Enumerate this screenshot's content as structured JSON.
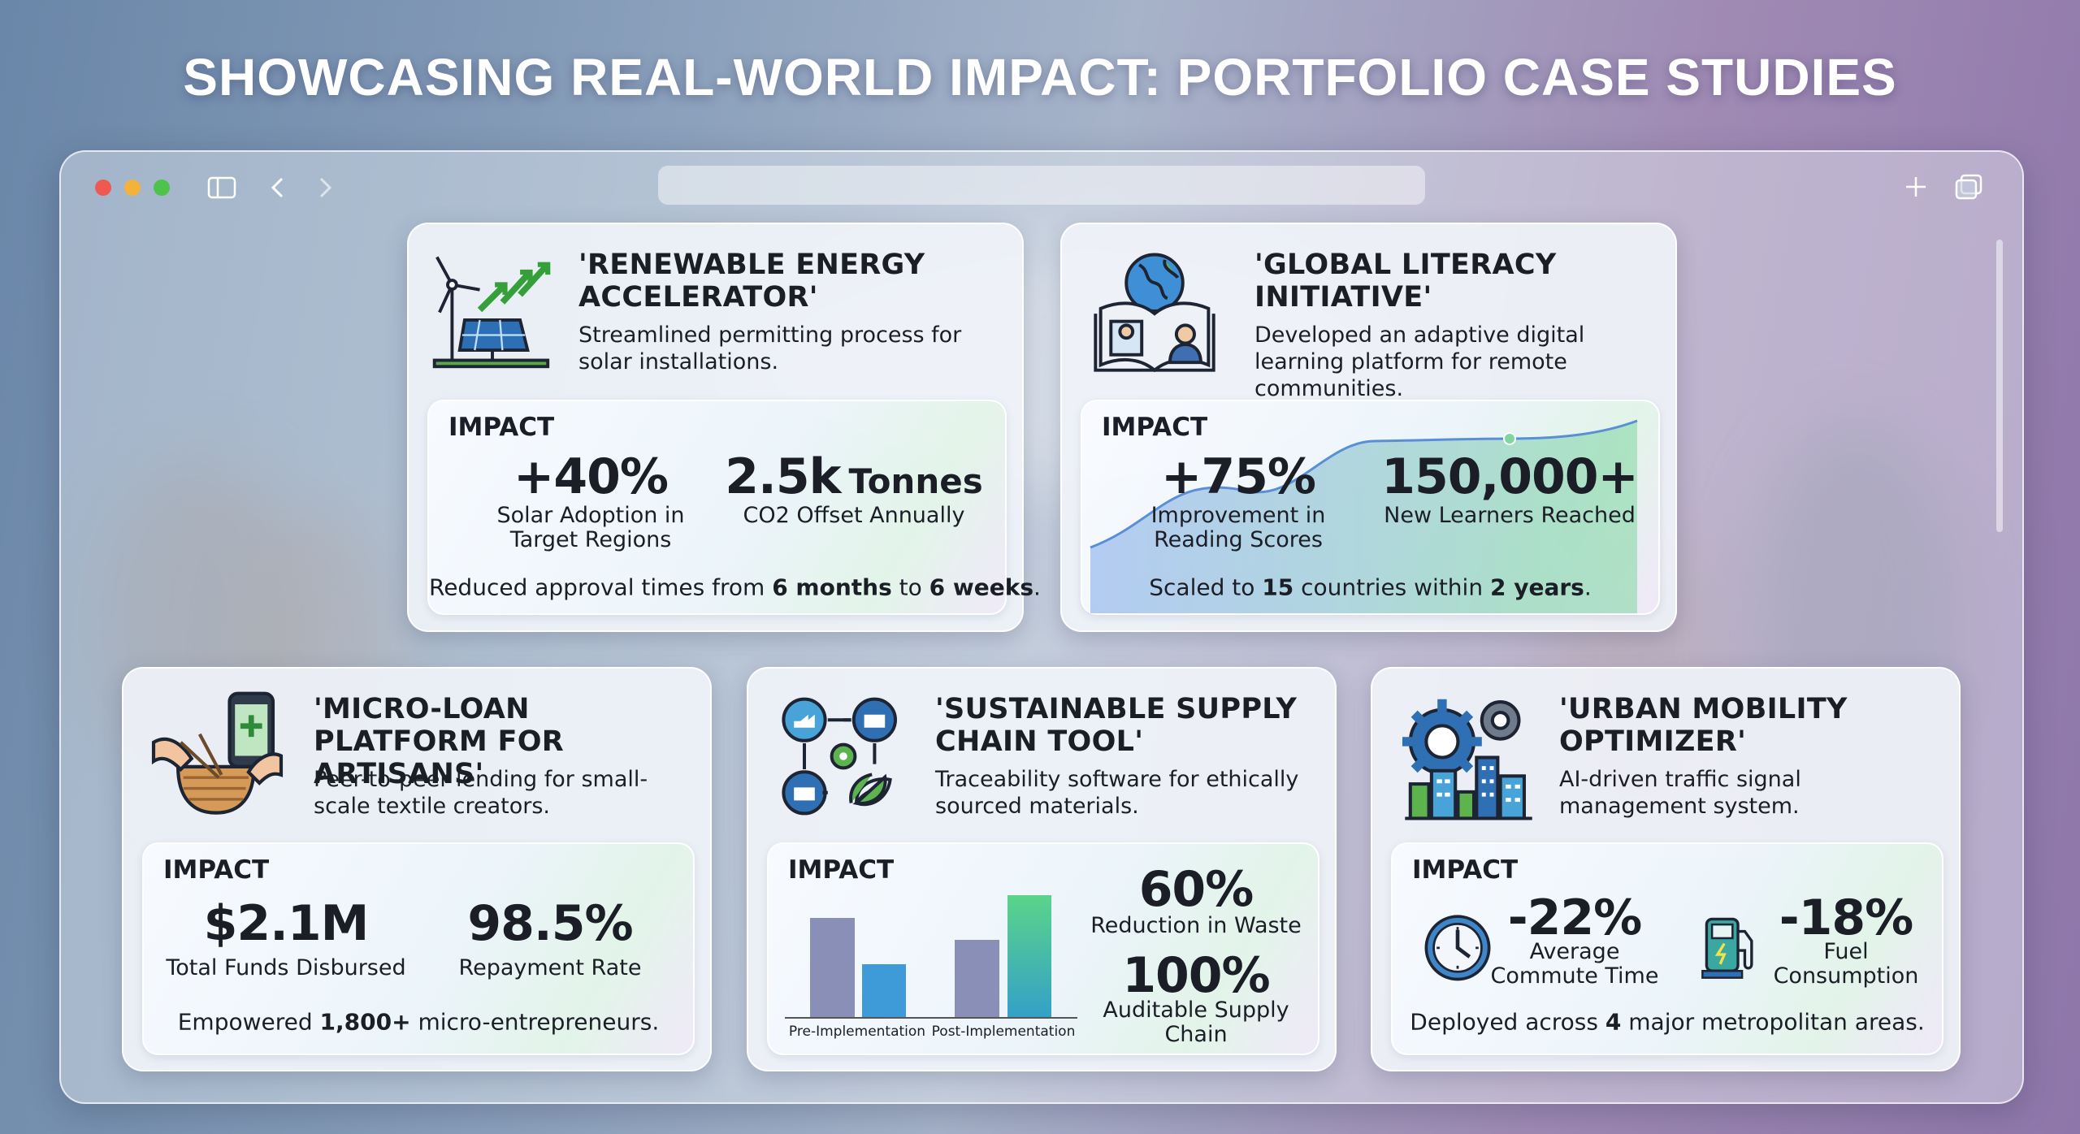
{
  "header": {
    "title": "SHOWCASING REAL-WORLD IMPACT: PORTFOLIO CASE STUDIES"
  },
  "cards": [
    {
      "title": "'RENEWABLE ENERGY ACCELERATOR'",
      "description": "Streamlined permitting process for solar installations.",
      "impact_label": "IMPACT",
      "metrics": [
        {
          "value": "+40%",
          "label": "Solar Adoption in Target Regions"
        },
        {
          "value": "2.5k",
          "unit": "Tonnes",
          "label": "CO2 Offset Annually"
        }
      ],
      "footer": [
        {
          "text": "Reduced approval times from ",
          "bold": false
        },
        {
          "text": "6 months",
          "bold": true
        },
        {
          "text": " to ",
          "bold": false
        },
        {
          "text": "6 weeks",
          "bold": true
        },
        {
          "text": ".",
          "bold": false
        }
      ]
    },
    {
      "title": "'GLOBAL LITERACY INITIATIVE'",
      "description": "Developed an adaptive digital learning platform for remote communities.",
      "impact_label": "IMPACT",
      "metrics": [
        {
          "value": "+75%",
          "label": "Improvement in Reading Scores"
        },
        {
          "value": "150,000+",
          "label": "New Learners Reached"
        }
      ],
      "footer": [
        {
          "text": "Scaled to ",
          "bold": false
        },
        {
          "text": "15",
          "bold": true
        },
        {
          "text": " countries within ",
          "bold": false
        },
        {
          "text": "2 years",
          "bold": true
        },
        {
          "text": ".",
          "bold": false
        }
      ]
    },
    {
      "title": "'MICRO-LOAN PLATFORM FOR ARTISANS'",
      "description": "Peer-to-peer lending for small-scale textile creators.",
      "impact_label": "IMPACT",
      "metrics": [
        {
          "value": "$2.1M",
          "label": "Total Funds Disbursed"
        },
        {
          "value": "98.5%",
          "label": "Repayment Rate"
        }
      ],
      "footer": [
        {
          "text": "Empowered ",
          "bold": false
        },
        {
          "text": "1,800+",
          "bold": true
        },
        {
          "text": " micro-entrepreneurs.",
          "bold": false
        }
      ]
    },
    {
      "title": "'SUSTAINABLE SUPPLY CHAIN TOOL'",
      "description": "Traceability software for ethically sourced materials.",
      "impact_label": "IMPACT",
      "metrics": [
        {
          "value": "60%",
          "label": "Reduction in Waste"
        },
        {
          "value": "100%",
          "label": "Auditable Supply Chain"
        }
      ],
      "chart": {
        "labels": [
          "Pre-Implementation",
          "Post-Implementation"
        ]
      }
    },
    {
      "title": "'URBAN MOBILITY OPTIMIZER'",
      "description": "AI-driven traffic signal management system.",
      "impact_label": "IMPACT",
      "metrics": [
        {
          "value": "-22%",
          "label": "Average Commute Time"
        },
        {
          "value": "-18%",
          "label": "Fuel Consumption"
        }
      ],
      "footer": [
        {
          "text": "Deployed across ",
          "bold": false
        },
        {
          "text": "4",
          "bold": true
        },
        {
          "text": " major metropolitan areas.",
          "bold": false
        }
      ]
    }
  ]
}
